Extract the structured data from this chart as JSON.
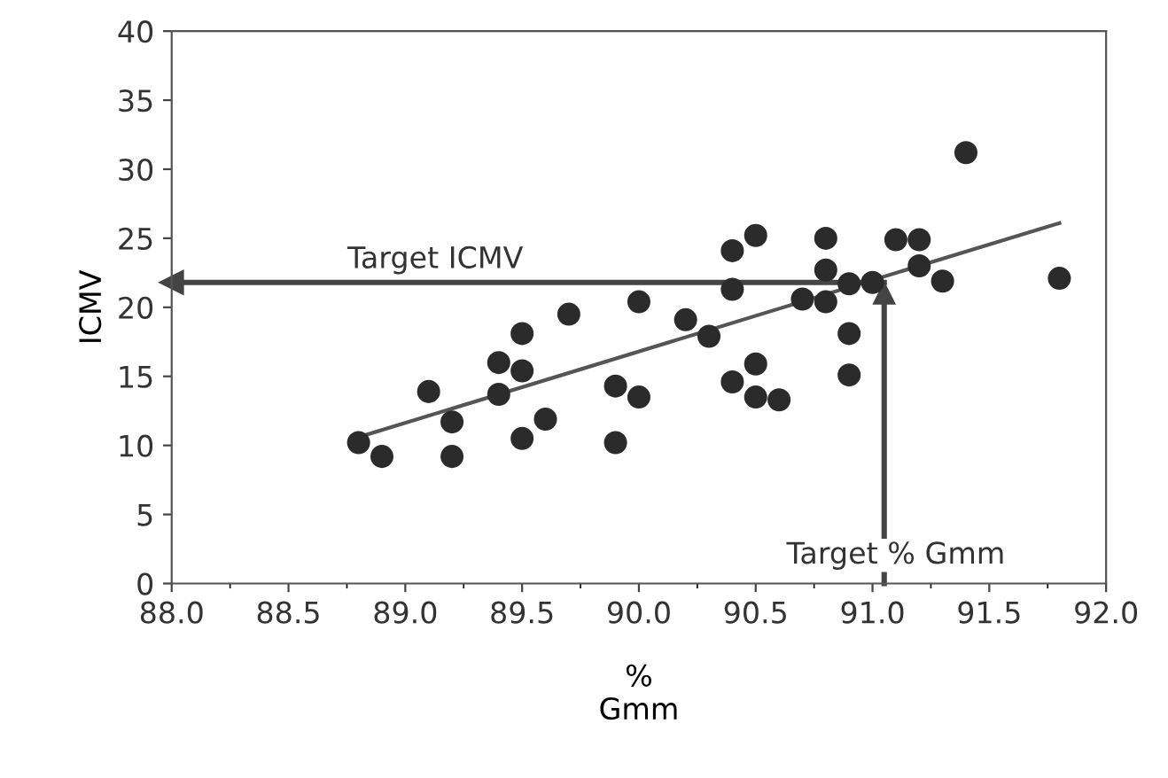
{
  "chart_data": {
    "type": "scatter",
    "xlabel": "%\nGmm",
    "ylabel": "ICMV",
    "xlim": [
      88.0,
      92.0
    ],
    "xticks": [
      {
        "value": 88.0,
        "label": "88.0"
      },
      {
        "value": 88.5,
        "label": "88.5"
      },
      {
        "value": 89.0,
        "label": "89.0"
      },
      {
        "value": 89.5,
        "label": "89.5"
      },
      {
        "value": 90.0,
        "label": "90.0"
      },
      {
        "value": 90.5,
        "label": "90.5"
      },
      {
        "value": 91.0,
        "label": "91.0"
      },
      {
        "value": 91.5,
        "label": "91.5"
      },
      {
        "value": 92.0,
        "label": "92.0"
      }
    ],
    "ylim": [
      0,
      40
    ],
    "yticks": [
      0,
      5,
      10,
      15,
      20,
      25,
      30,
      35,
      40
    ],
    "grid": false,
    "marker": "circle",
    "series": [
      {
        "color": "#2b2b2b",
        "x": [
          88.8,
          88.9,
          89.1,
          89.2,
          89.2,
          89.4,
          89.4,
          89.5,
          89.5,
          89.5,
          89.6,
          89.7,
          89.9,
          89.9,
          90.0,
          90.0,
          90.2,
          90.3,
          90.4,
          90.4,
          90.4,
          90.5,
          90.5,
          90.5,
          90.6,
          90.7,
          90.8,
          90.8,
          90.8,
          90.9,
          90.9,
          90.9,
          91.0,
          91.1,
          91.2,
          91.2,
          91.3,
          91.4,
          91.8
        ],
        "values": [
          10.2,
          9.2,
          13.9,
          11.7,
          9.2,
          16.0,
          13.7,
          18.1,
          15.4,
          10.5,
          11.9,
          19.5,
          14.3,
          10.2,
          20.4,
          13.5,
          19.1,
          17.9,
          24.1,
          21.3,
          14.6,
          25.2,
          15.9,
          13.5,
          13.3,
          20.6,
          25.0,
          22.7,
          20.4,
          18.1,
          15.1,
          21.7,
          21.8,
          24.9,
          24.9,
          23.0,
          21.9,
          31.2,
          22.1
        ]
      },
      {
        "type": "line",
        "color": "#555555",
        "x": [
          88.8,
          91.8
        ],
        "values": [
          10.6,
          26.1
        ],
        "line_style": "solid",
        "marker": "none"
      }
    ],
    "ref_lines": [
      {
        "axis": "y",
        "value": 21.8,
        "label": "Target ICMV",
        "color": "#444444"
      },
      {
        "axis": "x",
        "value": 91.05,
        "label": "Target % Gmm",
        "color": "#444444"
      }
    ]
  }
}
